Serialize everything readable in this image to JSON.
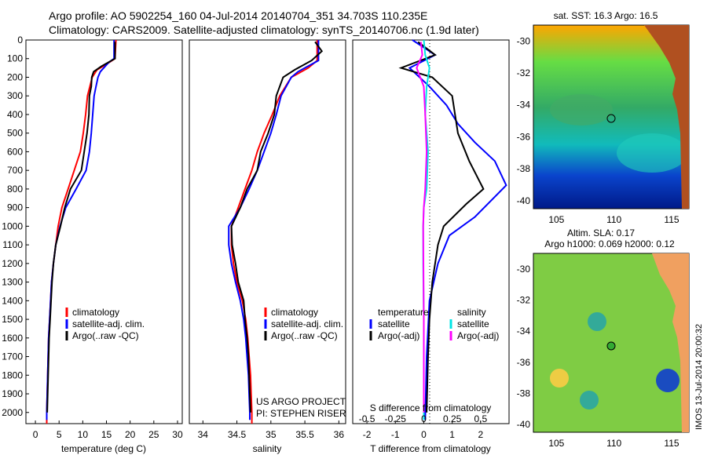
{
  "title": {
    "line1": "Argo profile: AO 5902254_160 04-Jul-2014 20140704_351 34.703S 110.235E",
    "line2": "Climatology: CARS2009. Satellite-adjusted climatology: synTS_20140706.nc (1.9d later)"
  },
  "colors": {
    "climatology": "#ff0000",
    "satellite": "#0000ff",
    "argo": "#000000",
    "sal_satellite": "#00e5e5",
    "sal_argo": "#ff00ff"
  },
  "chart_data": [
    {
      "type": "line",
      "xlabel": "temperature (deg C)",
      "xlim": [
        -2,
        31
      ],
      "xticks": [
        "0",
        "5",
        "10",
        "15",
        "20",
        "25",
        "30"
      ],
      "ylim": [
        2060,
        0
      ],
      "yticks": [
        "0",
        "100",
        "200",
        "300",
        "400",
        "500",
        "600",
        "700",
        "800",
        "900",
        "1000",
        "1100",
        "1200",
        "1300",
        "1400",
        "1500",
        "1600",
        "1700",
        "1800",
        "1900",
        "2000"
      ],
      "legend": [
        "climatology",
        "satellite-adj. clim.",
        "Argo(..raw -QC)"
      ],
      "series": [
        {
          "name": "climatology",
          "color": "#ff0000",
          "points": [
            [
              17,
              0
            ],
            [
              16.8,
              100
            ],
            [
              15,
              130
            ],
            [
              13,
              160
            ],
            [
              12,
              200
            ],
            [
              11.5,
              250
            ],
            [
              11,
              300
            ],
            [
              10.6,
              400
            ],
            [
              10.1,
              500
            ],
            [
              9.5,
              600
            ],
            [
              8.2,
              700
            ],
            [
              6.9,
              800
            ],
            [
              5.6,
              900
            ],
            [
              4.8,
              1000
            ],
            [
              4.3,
              1100
            ],
            [
              3.8,
              1200
            ],
            [
              3.4,
              1300
            ],
            [
              3.2,
              1400
            ],
            [
              3.0,
              1500
            ],
            [
              2.8,
              1600
            ],
            [
              2.7,
              1700
            ],
            [
              2.6,
              1800
            ],
            [
              2.5,
              1900
            ],
            [
              2.4,
              2000
            ],
            [
              2.4,
              2060
            ]
          ]
        },
        {
          "name": "satellite-adj. clim.",
          "color": "#0000ff",
          "points": [
            [
              16.6,
              0
            ],
            [
              16.6,
              100
            ],
            [
              15.5,
              120
            ],
            [
              13.7,
              170
            ],
            [
              13.2,
              200
            ],
            [
              12.8,
              250
            ],
            [
              12.4,
              300
            ],
            [
              12.1,
              400
            ],
            [
              11.8,
              500
            ],
            [
              11.4,
              600
            ],
            [
              10.7,
              700
            ],
            [
              8.6,
              800
            ],
            [
              6.4,
              900
            ],
            [
              5.2,
              1000
            ],
            [
              4.3,
              1100
            ],
            [
              3.8,
              1200
            ],
            [
              3.4,
              1300
            ],
            [
              3.2,
              1400
            ],
            [
              3.0,
              1500
            ],
            [
              2.8,
              1600
            ],
            [
              2.7,
              1700
            ],
            [
              2.6,
              1800
            ],
            [
              2.5,
              1900
            ],
            [
              2.4,
              2000
            ],
            [
              2.4,
              2040
            ]
          ]
        },
        {
          "name": "Argo(..raw -QC)",
          "color": "#000000",
          "points": [
            [
              16.8,
              10
            ],
            [
              16.8,
              100
            ],
            [
              14,
              140
            ],
            [
              12.3,
              170
            ],
            [
              11.9,
              200
            ],
            [
              11.8,
              250
            ],
            [
              11.4,
              300
            ],
            [
              11.3,
              400
            ],
            [
              10.9,
              500
            ],
            [
              10.3,
              600
            ],
            [
              9.7,
              700
            ],
            [
              7.4,
              800
            ],
            [
              6.2,
              900
            ],
            [
              5.3,
              1000
            ],
            [
              4.3,
              1100
            ],
            [
              3.8,
              1200
            ],
            [
              3.5,
              1300
            ],
            [
              3.3,
              1400
            ],
            [
              3.1,
              1500
            ],
            [
              2.9,
              1600
            ],
            [
              2.8,
              1700
            ],
            [
              2.7,
              1800
            ],
            [
              2.6,
              1900
            ],
            [
              2.5,
              2000
            ]
          ]
        }
      ]
    },
    {
      "type": "line",
      "xlabel": "salinity",
      "xlim": [
        33.8,
        36.1
      ],
      "xticks": [
        "34",
        "34.5",
        "35",
        "35.5",
        "36"
      ],
      "ylim": [
        2060,
        0
      ],
      "legend": [
        "climatology",
        "satellite-adj. clim.",
        "Argo(..raw -QC)"
      ],
      "annotations": [
        "US ARGO PROJECT",
        "PI: STEPHEN RISER"
      ],
      "series": [
        {
          "name": "climatology",
          "color": "#ff0000",
          "points": [
            [
              35.68,
              0
            ],
            [
              35.68,
              110
            ],
            [
              35.55,
              150
            ],
            [
              35.3,
              200
            ],
            [
              35.13,
              300
            ],
            [
              35.02,
              400
            ],
            [
              34.9,
              500
            ],
            [
              34.8,
              600
            ],
            [
              34.72,
              700
            ],
            [
              34.62,
              800
            ],
            [
              34.52,
              900
            ],
            [
              34.42,
              1000
            ],
            [
              34.42,
              1100
            ],
            [
              34.45,
              1200
            ],
            [
              34.5,
              1300
            ],
            [
              34.58,
              1400
            ],
            [
              34.63,
              1500
            ],
            [
              34.66,
              1600
            ],
            [
              34.68,
              1700
            ],
            [
              34.7,
              1800
            ],
            [
              34.71,
              1900
            ],
            [
              34.72,
              2000
            ],
            [
              34.72,
              2060
            ]
          ]
        },
        {
          "name": "satellite-adj. clim.",
          "color": "#0000ff",
          "points": [
            [
              35.7,
              0
            ],
            [
              35.7,
              110
            ],
            [
              35.6,
              130
            ],
            [
              35.4,
              170
            ],
            [
              35.3,
              200
            ],
            [
              35.15,
              300
            ],
            [
              35.08,
              400
            ],
            [
              35.0,
              500
            ],
            [
              34.9,
              600
            ],
            [
              34.8,
              700
            ],
            [
              34.68,
              800
            ],
            [
              34.55,
              900
            ],
            [
              34.38,
              1000
            ],
            [
              34.38,
              1100
            ],
            [
              34.42,
              1200
            ],
            [
              34.48,
              1300
            ],
            [
              34.55,
              1400
            ],
            [
              34.6,
              1500
            ],
            [
              34.63,
              1600
            ],
            [
              34.65,
              1700
            ],
            [
              34.67,
              1800
            ],
            [
              34.68,
              1900
            ],
            [
              34.69,
              2000
            ],
            [
              34.69,
              2040
            ]
          ]
        },
        {
          "name": "Argo(..raw -QC)",
          "color": "#000000",
          "points": [
            [
              35.65,
              10
            ],
            [
              35.75,
              60
            ],
            [
              35.6,
              110
            ],
            [
              35.35,
              160
            ],
            [
              35.18,
              200
            ],
            [
              35.08,
              300
            ],
            [
              35.05,
              400
            ],
            [
              34.96,
              500
            ],
            [
              34.85,
              600
            ],
            [
              34.8,
              700
            ],
            [
              34.65,
              800
            ],
            [
              34.55,
              900
            ],
            [
              34.42,
              1000
            ],
            [
              34.43,
              1100
            ],
            [
              34.48,
              1200
            ],
            [
              34.52,
              1300
            ],
            [
              34.6,
              1400
            ],
            [
              34.62,
              1500
            ],
            [
              34.65,
              1600
            ],
            [
              34.67,
              1700
            ],
            [
              34.68,
              1800
            ],
            [
              34.69,
              1900
            ],
            [
              34.7,
              2000
            ]
          ]
        }
      ]
    },
    {
      "type": "line",
      "xlabel": "T difference from climatology",
      "xlabel2": "S difference from climatology",
      "xlim": [
        -2.5,
        3
      ],
      "xticks": [
        "-2",
        "-1",
        "0",
        "1",
        "2"
      ],
      "xticks2": [
        "-0.5",
        "-0.25",
        "0",
        "0.25",
        "0.5"
      ],
      "ylim": [
        2060,
        0
      ],
      "legend_titles": [
        "temperature",
        "salinity"
      ],
      "legend": [
        "satellite",
        "Argo(-adj)",
        "satellite",
        "Argo(-adj)"
      ],
      "series": [
        {
          "name": "temperature satellite",
          "color": "#0000ff",
          "points": [
            [
              -0.4,
              0
            ],
            [
              0.4,
              80
            ],
            [
              -0.5,
              150
            ],
            [
              0.2,
              250
            ],
            [
              0.8,
              350
            ],
            [
              1.2,
              450
            ],
            [
              1.8,
              550
            ],
            [
              2.5,
              650
            ],
            [
              2.9,
              780
            ],
            [
              1.8,
              950
            ],
            [
              0.9,
              1050
            ],
            [
              0.5,
              1200
            ],
            [
              0.2,
              1400
            ],
            [
              0.1,
              1700
            ],
            [
              0.05,
              2040
            ]
          ]
        },
        {
          "name": "temperature Argo(-adj)",
          "color": "#000000",
          "points": [
            [
              -0.2,
              10
            ],
            [
              0.4,
              80
            ],
            [
              -0.8,
              150
            ],
            [
              0.3,
              200
            ],
            [
              1.0,
              300
            ],
            [
              1.2,
              500
            ],
            [
              1.6,
              650
            ],
            [
              2.1,
              800
            ],
            [
              1.5,
              880
            ],
            [
              0.7,
              1000
            ],
            [
              0.5,
              1100
            ],
            [
              0.3,
              1300
            ],
            [
              0.2,
              1500
            ],
            [
              0.15,
              1700
            ],
            [
              0.1,
              2000
            ]
          ]
        },
        {
          "name": "salinity satellite",
          "color": "#00e5e5",
          "points": [
            [
              0,
              0
            ],
            [
              0.05,
              80
            ],
            [
              0.2,
              150
            ],
            [
              0.1,
              250
            ],
            [
              0.05,
              400
            ],
            [
              0.15,
              600
            ],
            [
              0.1,
              800
            ],
            [
              0.0,
              900
            ],
            [
              -0.02,
              1000
            ],
            [
              -0.02,
              1200
            ],
            [
              0,
              1500
            ],
            [
              0,
              2040
            ]
          ]
        },
        {
          "name": "salinity Argo(-adj)",
          "color": "#ff00ff",
          "points": [
            [
              -0.1,
              10
            ],
            [
              -0.05,
              80
            ],
            [
              -0.25,
              150
            ],
            [
              0.0,
              250
            ],
            [
              0.05,
              400
            ],
            [
              0.1,
              600
            ],
            [
              0.05,
              800
            ],
            [
              0.0,
              900
            ],
            [
              -0.02,
              1000
            ],
            [
              0,
              1500
            ],
            [
              0,
              2000
            ]
          ]
        }
      ]
    },
    {
      "type": "heatmap",
      "title": "sat. SST: 16.3 Argo: 16.5",
      "xticks": [
        "105",
        "110",
        "115"
      ],
      "yticks": [
        "-30",
        "-32",
        "-34",
        "-36",
        "-38",
        "-40"
      ]
    },
    {
      "type": "heatmap",
      "title": "Altim. SLA: 0.17",
      "subtitle": "Argo h1000: 0.069 h2000: 0.12",
      "xticks": [
        "105",
        "110",
        "115"
      ],
      "yticks": [
        "-30",
        "-32",
        "-34",
        "-36",
        "-38",
        "-40"
      ]
    }
  ],
  "side_note": "IMOS 13-Jul-2014 20:00:32"
}
